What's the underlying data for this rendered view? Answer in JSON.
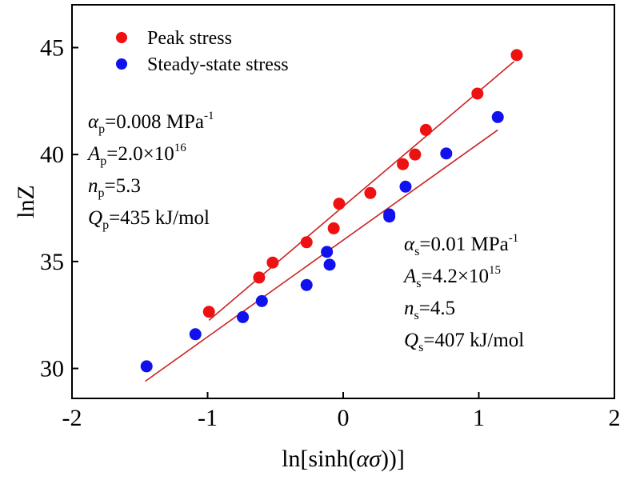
{
  "colors": {
    "peak": "#ee1111",
    "steady": "#1111ee",
    "fit_line": "#cc2222",
    "axis": "#000000"
  },
  "chart_data": {
    "type": "scatter",
    "xlabel_parts": [
      "ln[sinh(",
      "ασ",
      "))]"
    ],
    "ylabel": "lnZ",
    "xlim": [
      -2,
      2
    ],
    "ylim": [
      28.6,
      47.0
    ],
    "x_ticks": [
      -2,
      -1,
      0,
      1,
      2
    ],
    "y_ticks": [
      30,
      35,
      40,
      45
    ],
    "x_tick_labels": [
      "-2",
      "-1",
      "0",
      "1",
      "2"
    ],
    "y_tick_labels": [
      "30",
      "35",
      "40",
      "45"
    ],
    "grid": false,
    "legend_position": "top-left",
    "series": [
      {
        "name": "Peak stress",
        "color": "#ee1111",
        "points": [
          {
            "x": -0.99,
            "y": 32.65
          },
          {
            "x": -0.62,
            "y": 34.25
          },
          {
            "x": -0.52,
            "y": 34.95
          },
          {
            "x": -0.27,
            "y": 35.9
          },
          {
            "x": -0.07,
            "y": 36.55
          },
          {
            "x": -0.03,
            "y": 37.7
          },
          {
            "x": 0.2,
            "y": 38.2
          },
          {
            "x": 0.44,
            "y": 39.55
          },
          {
            "x": 0.53,
            "y": 40.0
          },
          {
            "x": 0.61,
            "y": 41.15
          },
          {
            "x": 0.99,
            "y": 42.85
          },
          {
            "x": 1.28,
            "y": 44.65
          }
        ],
        "fit": {
          "x_start": -0.99,
          "y_start": 32.25,
          "x_end": 1.26,
          "y_end": 44.35
        }
      },
      {
        "name": "Steady-state stress",
        "color": "#1111ee",
        "points": [
          {
            "x": -1.45,
            "y": 30.1
          },
          {
            "x": -1.09,
            "y": 31.6
          },
          {
            "x": -0.74,
            "y": 32.4
          },
          {
            "x": -0.6,
            "y": 33.15
          },
          {
            "x": -0.27,
            "y": 33.9
          },
          {
            "x": -0.12,
            "y": 35.45
          },
          {
            "x": -0.1,
            "y": 34.85
          },
          {
            "x": 0.34,
            "y": 37.1
          },
          {
            "x": 0.34,
            "y": 37.2
          },
          {
            "x": 0.46,
            "y": 38.5
          },
          {
            "x": 0.76,
            "y": 40.05
          },
          {
            "x": 1.14,
            "y": 41.75
          }
        ],
        "fit": {
          "x_start": -1.46,
          "y_start": 29.4,
          "x_end": 1.14,
          "y_end": 41.15
        }
      }
    ],
    "annotations": {
      "peak": [
        {
          "sym": "α",
          "sub": "p",
          "val": "=0.008 MPa",
          "sup": "-1"
        },
        {
          "sym": "A",
          "sub": "p",
          "val": "=2.0×10",
          "sup": "16"
        },
        {
          "sym": "n",
          "sub": "p",
          "val": "=5.3",
          "sup": ""
        },
        {
          "sym": "Q",
          "sub": "p",
          "val": "=435 kJ/mol",
          "sup": ""
        }
      ],
      "steady": [
        {
          "sym": "α",
          "sub": "s",
          "val": "=0.01 MPa",
          "sup": "-1"
        },
        {
          "sym": "A",
          "sub": "s",
          "val": "=4.2×10",
          "sup": "15"
        },
        {
          "sym": "n",
          "sub": "s",
          "val": "=4.5",
          "sup": ""
        },
        {
          "sym": "Q",
          "sub": "s",
          "val": "=407 kJ/mol",
          "sup": ""
        }
      ]
    }
  }
}
